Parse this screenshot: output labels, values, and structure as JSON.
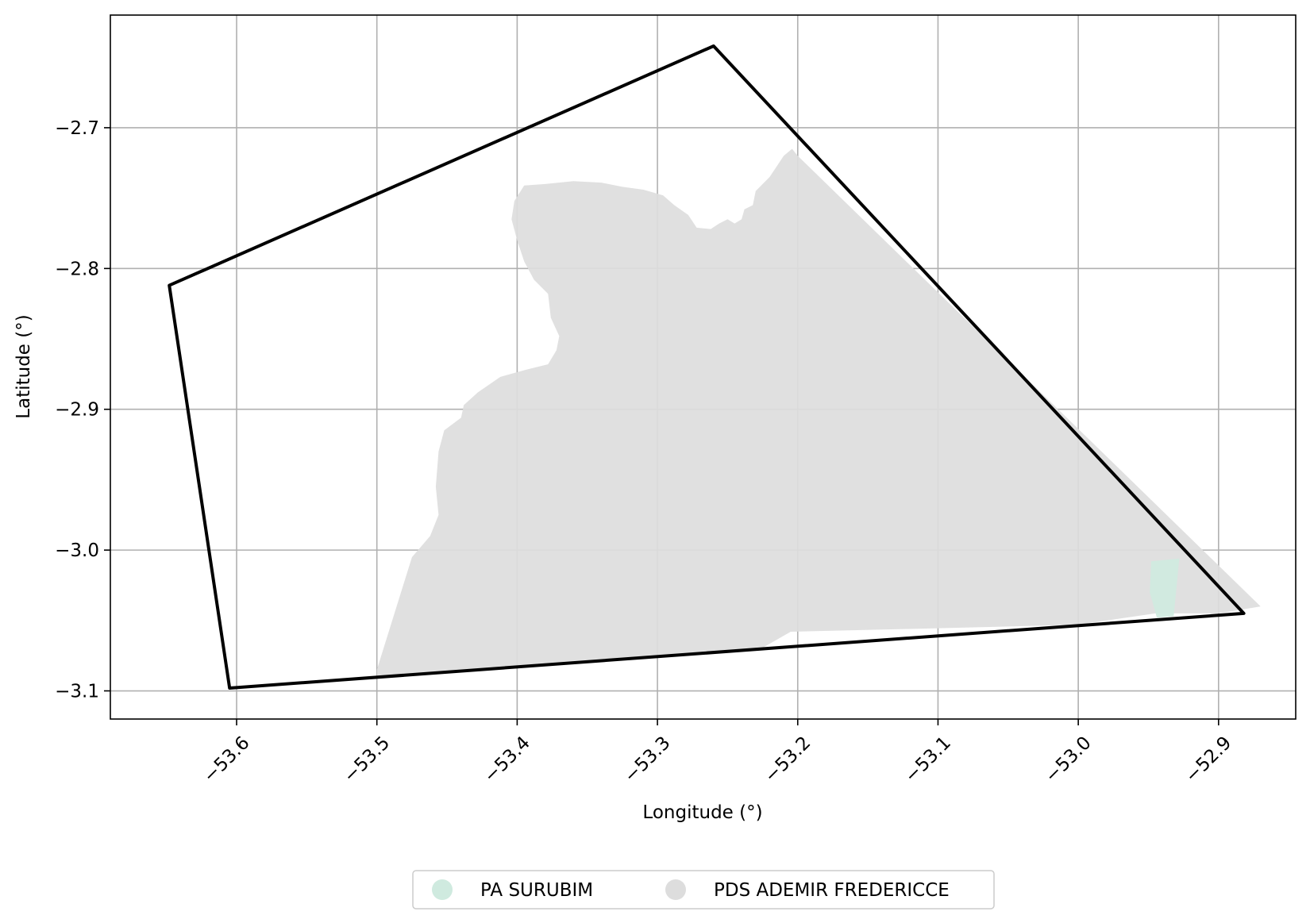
{
  "chart_data": {
    "type": "map",
    "title": "",
    "xlabel": "Longitude (°)",
    "ylabel": "Latitude (°)",
    "xlim": [
      -53.69,
      -52.845
    ],
    "ylim": [
      -3.12,
      -2.62
    ],
    "xticks": [
      -53.6,
      -53.5,
      -53.4,
      -53.3,
      -53.2,
      -53.1,
      -53.0,
      -52.9
    ],
    "xtick_labels": [
      "−53.6",
      "−53.5",
      "−53.4",
      "−53.3",
      "−53.2",
      "−53.1",
      "−53.0",
      "−52.9"
    ],
    "yticks": [
      -2.7,
      -2.8,
      -2.9,
      -3.0,
      -3.1
    ],
    "ytick_labels": [
      "−2.7",
      "−2.8",
      "−2.9",
      "−3.0",
      "−3.1"
    ],
    "grid": true,
    "legend_position": "bottom-center",
    "boundary": {
      "stroke": "#000000",
      "points": [
        [
          -53.26,
          -2.642
        ],
        [
          -52.882,
          -3.045
        ],
        [
          -53.605,
          -3.098
        ],
        [
          -53.648,
          -2.812
        ]
      ]
    },
    "areas": [
      {
        "name": "PDS ADEMIR FREDERICCE",
        "color": "#dddddd",
        "points": [
          [
            -53.204,
            -2.715
          ],
          [
            -53.21,
            -2.72
          ],
          [
            -53.22,
            -2.735
          ],
          [
            -53.23,
            -2.745
          ],
          [
            -53.232,
            -2.755
          ],
          [
            -53.238,
            -2.758
          ],
          [
            -53.24,
            -2.765
          ],
          [
            -53.245,
            -2.768
          ],
          [
            -53.25,
            -2.765
          ],
          [
            -53.256,
            -2.768
          ],
          [
            -53.262,
            -2.772
          ],
          [
            -53.272,
            -2.771
          ],
          [
            -53.278,
            -2.762
          ],
          [
            -53.288,
            -2.755
          ],
          [
            -53.296,
            -2.748
          ],
          [
            -53.31,
            -2.744
          ],
          [
            -53.325,
            -2.742
          ],
          [
            -53.34,
            -2.739
          ],
          [
            -53.36,
            -2.738
          ],
          [
            -53.38,
            -2.74
          ],
          [
            -53.395,
            -2.741
          ],
          [
            -53.402,
            -2.752
          ],
          [
            -53.404,
            -2.765
          ],
          [
            -53.4,
            -2.78
          ],
          [
            -53.395,
            -2.795
          ],
          [
            -53.388,
            -2.808
          ],
          [
            -53.378,
            -2.818
          ],
          [
            -53.376,
            -2.835
          ],
          [
            -53.37,
            -2.848
          ],
          [
            -53.372,
            -2.858
          ],
          [
            -53.378,
            -2.868
          ],
          [
            -53.394,
            -2.872
          ],
          [
            -53.412,
            -2.877
          ],
          [
            -53.428,
            -2.888
          ],
          [
            -53.438,
            -2.897
          ],
          [
            -53.44,
            -2.906
          ],
          [
            -53.452,
            -2.915
          ],
          [
            -53.456,
            -2.93
          ],
          [
            -53.458,
            -2.955
          ],
          [
            -53.456,
            -2.975
          ],
          [
            -53.462,
            -2.99
          ],
          [
            -53.475,
            -3.005
          ],
          [
            -53.5,
            -3.085
          ],
          [
            -53.5,
            -3.09
          ],
          [
            -53.226,
            -3.07
          ],
          [
            -53.205,
            -3.058
          ],
          [
            -53.12,
            -3.056
          ],
          [
            -53.0,
            -3.053
          ],
          [
            -52.945,
            -3.045
          ],
          [
            -52.9,
            -3.045
          ],
          [
            -52.87,
            -3.04
          ],
          [
            -53.2,
            -2.72
          ]
        ]
      },
      {
        "name": "PA SURUBIM",
        "color": "#cfeadf",
        "points": [
          [
            -52.948,
            -3.008
          ],
          [
            -52.928,
            -3.006
          ],
          [
            -52.932,
            -3.047
          ],
          [
            -52.944,
            -3.048
          ],
          [
            -52.949,
            -3.03
          ]
        ]
      }
    ]
  }
}
